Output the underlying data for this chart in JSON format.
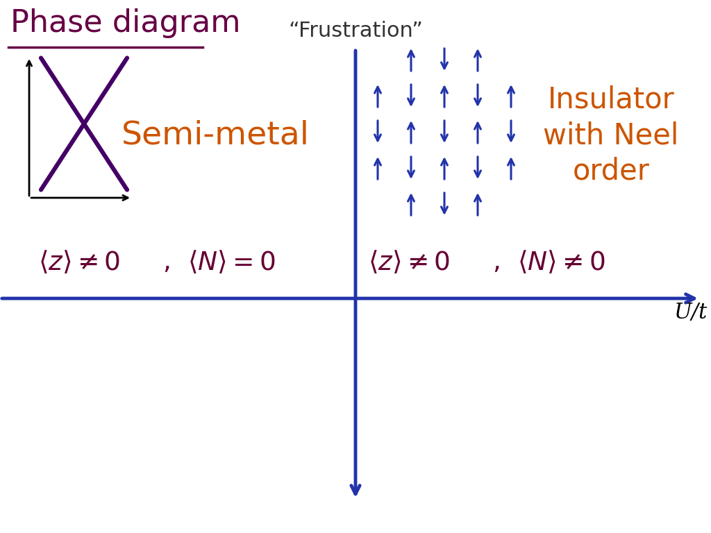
{
  "title": "Phase diagram",
  "frustration_label": "“Frustration”",
  "semimetal_label": "Semi-metal",
  "insulator_label": "Insulator\nwith Neel\norder",
  "title_color": "#660044",
  "semimetal_color": "#CC5500",
  "insulator_color": "#CC5500",
  "frustration_color": "#333333",
  "cross_color": "#440066",
  "arrow_color": "#2233AA",
  "eq_color": "#660033",
  "xlabel": "U/t",
  "bg_color": "#ffffff",
  "fig_w": 10.24,
  "fig_h": 7.68,
  "dpi": 100
}
